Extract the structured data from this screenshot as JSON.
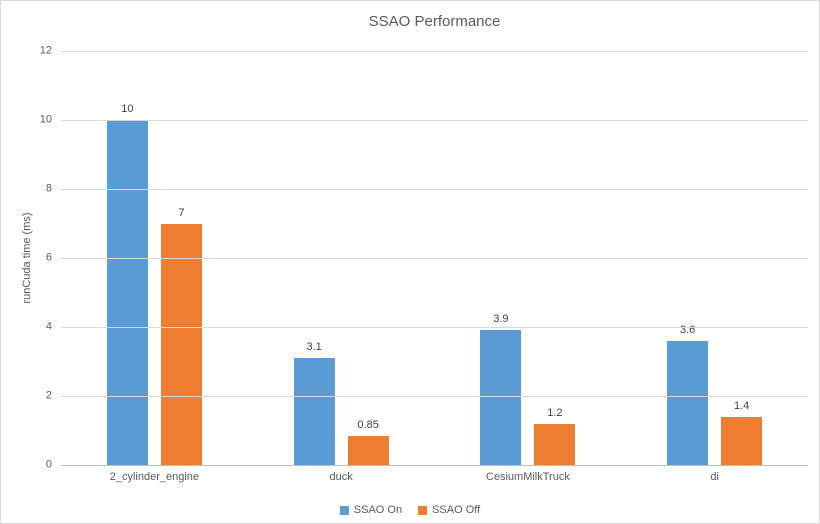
{
  "chart_data": {
    "type": "bar",
    "title": "SSAO Performance",
    "xlabel": "",
    "ylabel": "runCuda time (ms)",
    "categories": [
      "2_cylinder_engine",
      "duck",
      "CesiumMilkTruck",
      "di"
    ],
    "series": [
      {
        "name": "SSAO On",
        "color": "#5B9BD5",
        "values": [
          10,
          3.1,
          3.9,
          3.6
        ],
        "labels": [
          "10",
          "3.1",
          "3.9",
          "3.6"
        ]
      },
      {
        "name": "SSAO Off",
        "color": "#ED7D31",
        "values": [
          7,
          0.85,
          1.2,
          1.4
        ],
        "labels": [
          "7",
          "0.85",
          "1.2",
          "1.4"
        ]
      }
    ],
    "ylim": [
      0,
      12
    ],
    "yticks": [
      0,
      2,
      4,
      6,
      8,
      10,
      12
    ],
    "grid": true,
    "legend_position": "bottom"
  },
  "colors": {
    "background": "#FFFFFF",
    "border": "#D9D9D9",
    "gridline": "#D9D9D9",
    "axis_line": "#BFBFBF",
    "text_muted": "#595959",
    "data_label": "#404040"
  }
}
